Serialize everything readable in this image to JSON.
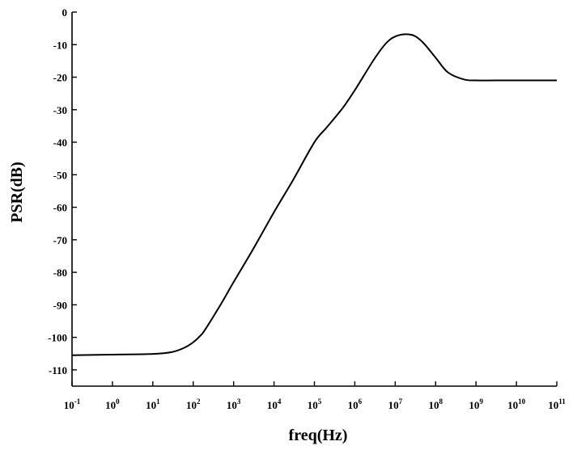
{
  "chart_data": {
    "type": "line",
    "xlabel": "freq(Hz)",
    "ylabel": "PSR(dB)",
    "x_scale": "log",
    "xlim": [
      0.1,
      100000000000
    ],
    "ylim": [
      -115,
      0
    ],
    "grid": false,
    "x_ticks": [
      {
        "value": 0.1,
        "base": "10",
        "exp": "-1"
      },
      {
        "value": 1,
        "base": "10",
        "exp": "0"
      },
      {
        "value": 10,
        "base": "10",
        "exp": "1"
      },
      {
        "value": 100,
        "base": "10",
        "exp": "2"
      },
      {
        "value": 1000,
        "base": "10",
        "exp": "3"
      },
      {
        "value": 10000,
        "base": "10",
        "exp": "4"
      },
      {
        "value": 100000,
        "base": "10",
        "exp": "5"
      },
      {
        "value": 1000000,
        "base": "10",
        "exp": "6"
      },
      {
        "value": 10000000,
        "base": "10",
        "exp": "7"
      },
      {
        "value": 100000000,
        "base": "10",
        "exp": "8"
      },
      {
        "value": 1000000000,
        "base": "10",
        "exp": "9"
      },
      {
        "value": 10000000000,
        "base": "10",
        "exp": "10"
      },
      {
        "value": 100000000000,
        "base": "10",
        "exp": "11"
      }
    ],
    "y_ticks": [
      {
        "value": 0,
        "label": "0"
      },
      {
        "value": -10,
        "label": "-10"
      },
      {
        "value": -20,
        "label": "-20"
      },
      {
        "value": -30,
        "label": "-30"
      },
      {
        "value": -40,
        "label": "-40"
      },
      {
        "value": -50,
        "label": "-50"
      },
      {
        "value": -60,
        "label": "-60"
      },
      {
        "value": -70,
        "label": "-70"
      },
      {
        "value": -80,
        "label": "-80"
      },
      {
        "value": -90,
        "label": "-90"
      },
      {
        "value": -100,
        "label": "-100"
      },
      {
        "value": -110,
        "label": "-110"
      }
    ],
    "series": [
      {
        "color": "#000000",
        "x": [
          0.1,
          1,
          10,
          30,
          60,
          100,
          150,
          200,
          500,
          1000,
          3000,
          10000,
          30000,
          100000,
          200000,
          500000,
          1000000,
          3000000,
          6000000,
          10000000,
          18000000,
          30000000,
          50000000,
          100000000,
          200000000,
          500000000,
          1000000000,
          3000000000,
          10000000000,
          100000000000
        ],
        "y": [
          -105.5,
          -105.3,
          -105.1,
          -104.5,
          -103.2,
          -101.5,
          -99.5,
          -97.5,
          -89.5,
          -83,
          -73,
          -61.5,
          -51.5,
          -40,
          -35.5,
          -29.5,
          -24,
          -14.5,
          -9.5,
          -7.5,
          -6.8,
          -7.3,
          -9.5,
          -14,
          -18.5,
          -20.7,
          -21,
          -21,
          -21,
          -21
        ]
      }
    ]
  }
}
